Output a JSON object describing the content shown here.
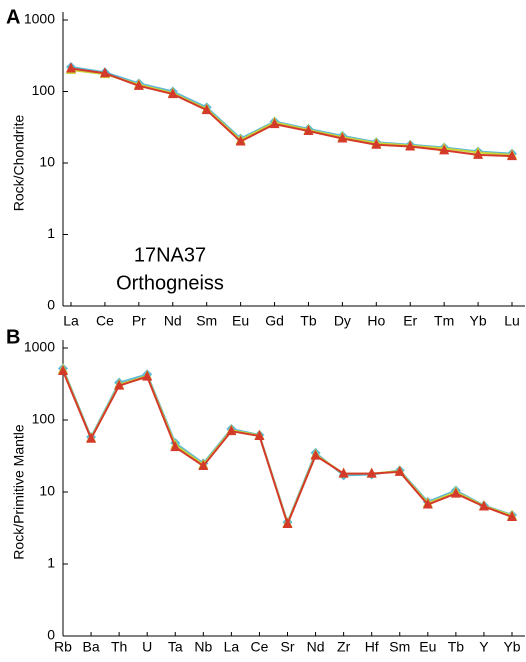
{
  "chart_data": [
    {
      "type": "line",
      "panel_label": "A",
      "ylabel": "Rock/Chondrite",
      "yscale": "log",
      "annotations": [
        "17NA37",
        "Orthogneiss"
      ],
      "categories": [
        "La",
        "Ce",
        "Pr",
        "Nd",
        "Sm",
        "Eu",
        "Gd",
        "Tb",
        "Dy",
        "Ho",
        "Er",
        "Tm",
        "Yb",
        "Lu"
      ],
      "ylim": [
        0.1,
        1000
      ],
      "yticks": [
        {
          "value": 0.1,
          "label": "0"
        },
        1,
        10,
        100,
        1000
      ],
      "series": [
        {
          "color": "#5bb8d6",
          "marker": "diamond",
          "values": [
            220,
            185,
            130,
            100,
            60,
            22,
            38,
            30,
            24,
            19.5,
            18,
            16.5,
            14.5,
            13.5
          ]
        },
        {
          "color": "#c8d43a",
          "marker": "triangle",
          "values": [
            200,
            175,
            125,
            95,
            57,
            21,
            37,
            29,
            23,
            19,
            17.5,
            16,
            14,
            13
          ]
        },
        {
          "color": "#d43a2a",
          "marker": "triangle",
          "values": [
            210,
            180,
            120,
            92,
            55,
            20,
            35,
            28,
            22,
            18,
            17,
            15,
            13,
            12.5
          ]
        }
      ]
    },
    {
      "type": "line",
      "panel_label": "B",
      "ylabel": "Rock/Primitive Mantle",
      "yscale": "log",
      "categories": [
        "Rb",
        "Ba",
        "Th",
        "U",
        "Ta",
        "Nb",
        "La",
        "Ce",
        "Sr",
        "Nd",
        "Zr",
        "Hf",
        "Sm",
        "Eu",
        "Tb",
        "Y",
        "Yb"
      ],
      "ylim": [
        0.1,
        1000
      ],
      "yticks": [
        {
          "value": 0.1,
          "label": "0"
        },
        1,
        10,
        100,
        1000
      ],
      "series": [
        {
          "color": "#5bb8d6",
          "marker": "diamond",
          "values": [
            520,
            58,
            330,
            430,
            48,
            25,
            75,
            62,
            3.8,
            35,
            17,
            17.5,
            20,
            7.3,
            10.5,
            6.5,
            4.8
          ]
        },
        {
          "color": "#c8d43a",
          "marker": "triangle",
          "values": [
            500,
            56,
            310,
            410,
            45,
            24,
            72,
            61,
            3.7,
            33,
            18,
            18,
            19.5,
            7,
            10,
            6.4,
            4.7
          ]
        },
        {
          "color": "#d43a2a",
          "marker": "triangle",
          "values": [
            480,
            55,
            300,
            400,
            42,
            23,
            70,
            60,
            3.6,
            32,
            18,
            18,
            19,
            6.7,
            9.5,
            6.3,
            4.5
          ]
        }
      ]
    }
  ]
}
